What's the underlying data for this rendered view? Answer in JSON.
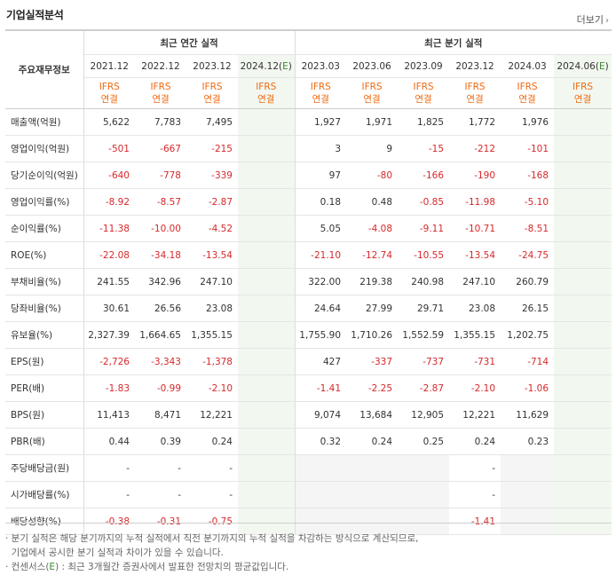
{
  "title": "기업실적분석",
  "more_label": "더보기",
  "more_icon": "chevron-right-icon",
  "row_header_label": "주요재무정보",
  "group_annual": "최근 연간 실적",
  "group_quarter": "최근 분기 실적",
  "annual_columns": [
    "2021.12",
    "2022.12",
    "2023.12",
    "2024.12(E)"
  ],
  "quarter_columns": [
    "2023.03",
    "2023.06",
    "2023.09",
    "2023.12",
    "2024.03",
    "2024.06(E)"
  ],
  "ifrs_line1": "IFRS",
  "ifrs_line2": "연결",
  "rows": [
    {
      "label": "매출액(억원)",
      "annual": [
        "5,622",
        "7,783",
        "7,495",
        ""
      ],
      "quarter": [
        "1,927",
        "1,971",
        "1,825",
        "1,772",
        "1,976",
        ""
      ]
    },
    {
      "label": "영업이익(억원)",
      "annual": [
        "-501",
        "-667",
        "-215",
        ""
      ],
      "quarter": [
        "3",
        "9",
        "-15",
        "-212",
        "-101",
        ""
      ]
    },
    {
      "label": "당기순이익(억원)",
      "annual": [
        "-640",
        "-778",
        "-339",
        ""
      ],
      "quarter": [
        "97",
        "-80",
        "-166",
        "-190",
        "-168",
        ""
      ]
    },
    {
      "label": "영업이익률(%)",
      "annual": [
        "-8.92",
        "-8.57",
        "-2.87",
        ""
      ],
      "quarter": [
        "0.18",
        "0.48",
        "-0.85",
        "-11.98",
        "-5.10",
        ""
      ]
    },
    {
      "label": "순이익률(%)",
      "annual": [
        "-11.38",
        "-10.00",
        "-4.52",
        ""
      ],
      "quarter": [
        "5.05",
        "-4.08",
        "-9.11",
        "-10.71",
        "-8.51",
        ""
      ]
    },
    {
      "label": "ROE(%)",
      "annual": [
        "-22.08",
        "-34.18",
        "-13.54",
        ""
      ],
      "quarter": [
        "-21.10",
        "-12.74",
        "-10.55",
        "-13.54",
        "-24.75",
        ""
      ]
    },
    {
      "label": "부채비율(%)",
      "annual": [
        "241.55",
        "342.96",
        "247.10",
        ""
      ],
      "quarter": [
        "322.00",
        "219.38",
        "240.98",
        "247.10",
        "260.79",
        ""
      ]
    },
    {
      "label": "당좌비율(%)",
      "annual": [
        "30.61",
        "26.56",
        "23.08",
        ""
      ],
      "quarter": [
        "24.64",
        "27.99",
        "29.71",
        "23.08",
        "26.15",
        ""
      ]
    },
    {
      "label": "유보율(%)",
      "annual": [
        "2,327.39",
        "1,664.65",
        "1,355.15",
        ""
      ],
      "quarter": [
        "1,755.90",
        "1,710.26",
        "1,552.59",
        "1,355.15",
        "1,202.75",
        ""
      ]
    },
    {
      "label": "EPS(원)",
      "annual": [
        "-2,726",
        "-3,343",
        "-1,378",
        ""
      ],
      "quarter": [
        "427",
        "-337",
        "-737",
        "-731",
        "-714",
        ""
      ]
    },
    {
      "label": "PER(배)",
      "annual": [
        "-1.83",
        "-0.99",
        "-2.10",
        ""
      ],
      "quarter": [
        "-1.41",
        "-2.25",
        "-2.87",
        "-2.10",
        "-1.06",
        ""
      ]
    },
    {
      "label": "BPS(원)",
      "annual": [
        "11,413",
        "8,471",
        "12,221",
        ""
      ],
      "quarter": [
        "9,074",
        "13,684",
        "12,905",
        "12,221",
        "11,629",
        ""
      ]
    },
    {
      "label": "PBR(배)",
      "annual": [
        "0.44",
        "0.39",
        "0.24",
        ""
      ],
      "quarter": [
        "0.32",
        "0.24",
        "0.25",
        "0.24",
        "0.23",
        ""
      ]
    },
    {
      "label": "주당배당금(원)",
      "annual": [
        "-",
        "-",
        "-",
        ""
      ],
      "quarter": [
        "",
        "",
        "",
        "-",
        "",
        ""
      ]
    },
    {
      "label": "시가배당률(%)",
      "annual": [
        "-",
        "-",
        "-",
        ""
      ],
      "quarter": [
        "",
        "",
        "",
        "-",
        "",
        ""
      ]
    },
    {
      "label": "배당성향(%)",
      "annual": [
        "-0.38",
        "-0.31",
        "-0.75",
        ""
      ],
      "quarter": [
        "",
        "",
        "",
        "-1.41",
        "",
        ""
      ]
    }
  ],
  "notes": {
    "line1": "· 분기 실적은 해당 분기까지의 누적 실적에서 직전 분기까지의 누적 실적을 차감하는 방식으로 계산되므로,",
    "line2": "  기업에서 공시한 분기 실적과 차이가 있을 수 있습니다.",
    "line3_prefix": "· 컨센서스(",
    "line3_mark": "E",
    "line3_suffix": ") : 최근 3개월간 증권사에서 발표한 전망치의 평균값입니다."
  },
  "colors": {
    "negative": "#d6282b",
    "ifrs": "#ef6a12",
    "estimate_bg": "#f2f8ef",
    "estimate_mark": "#3a8a2f"
  }
}
